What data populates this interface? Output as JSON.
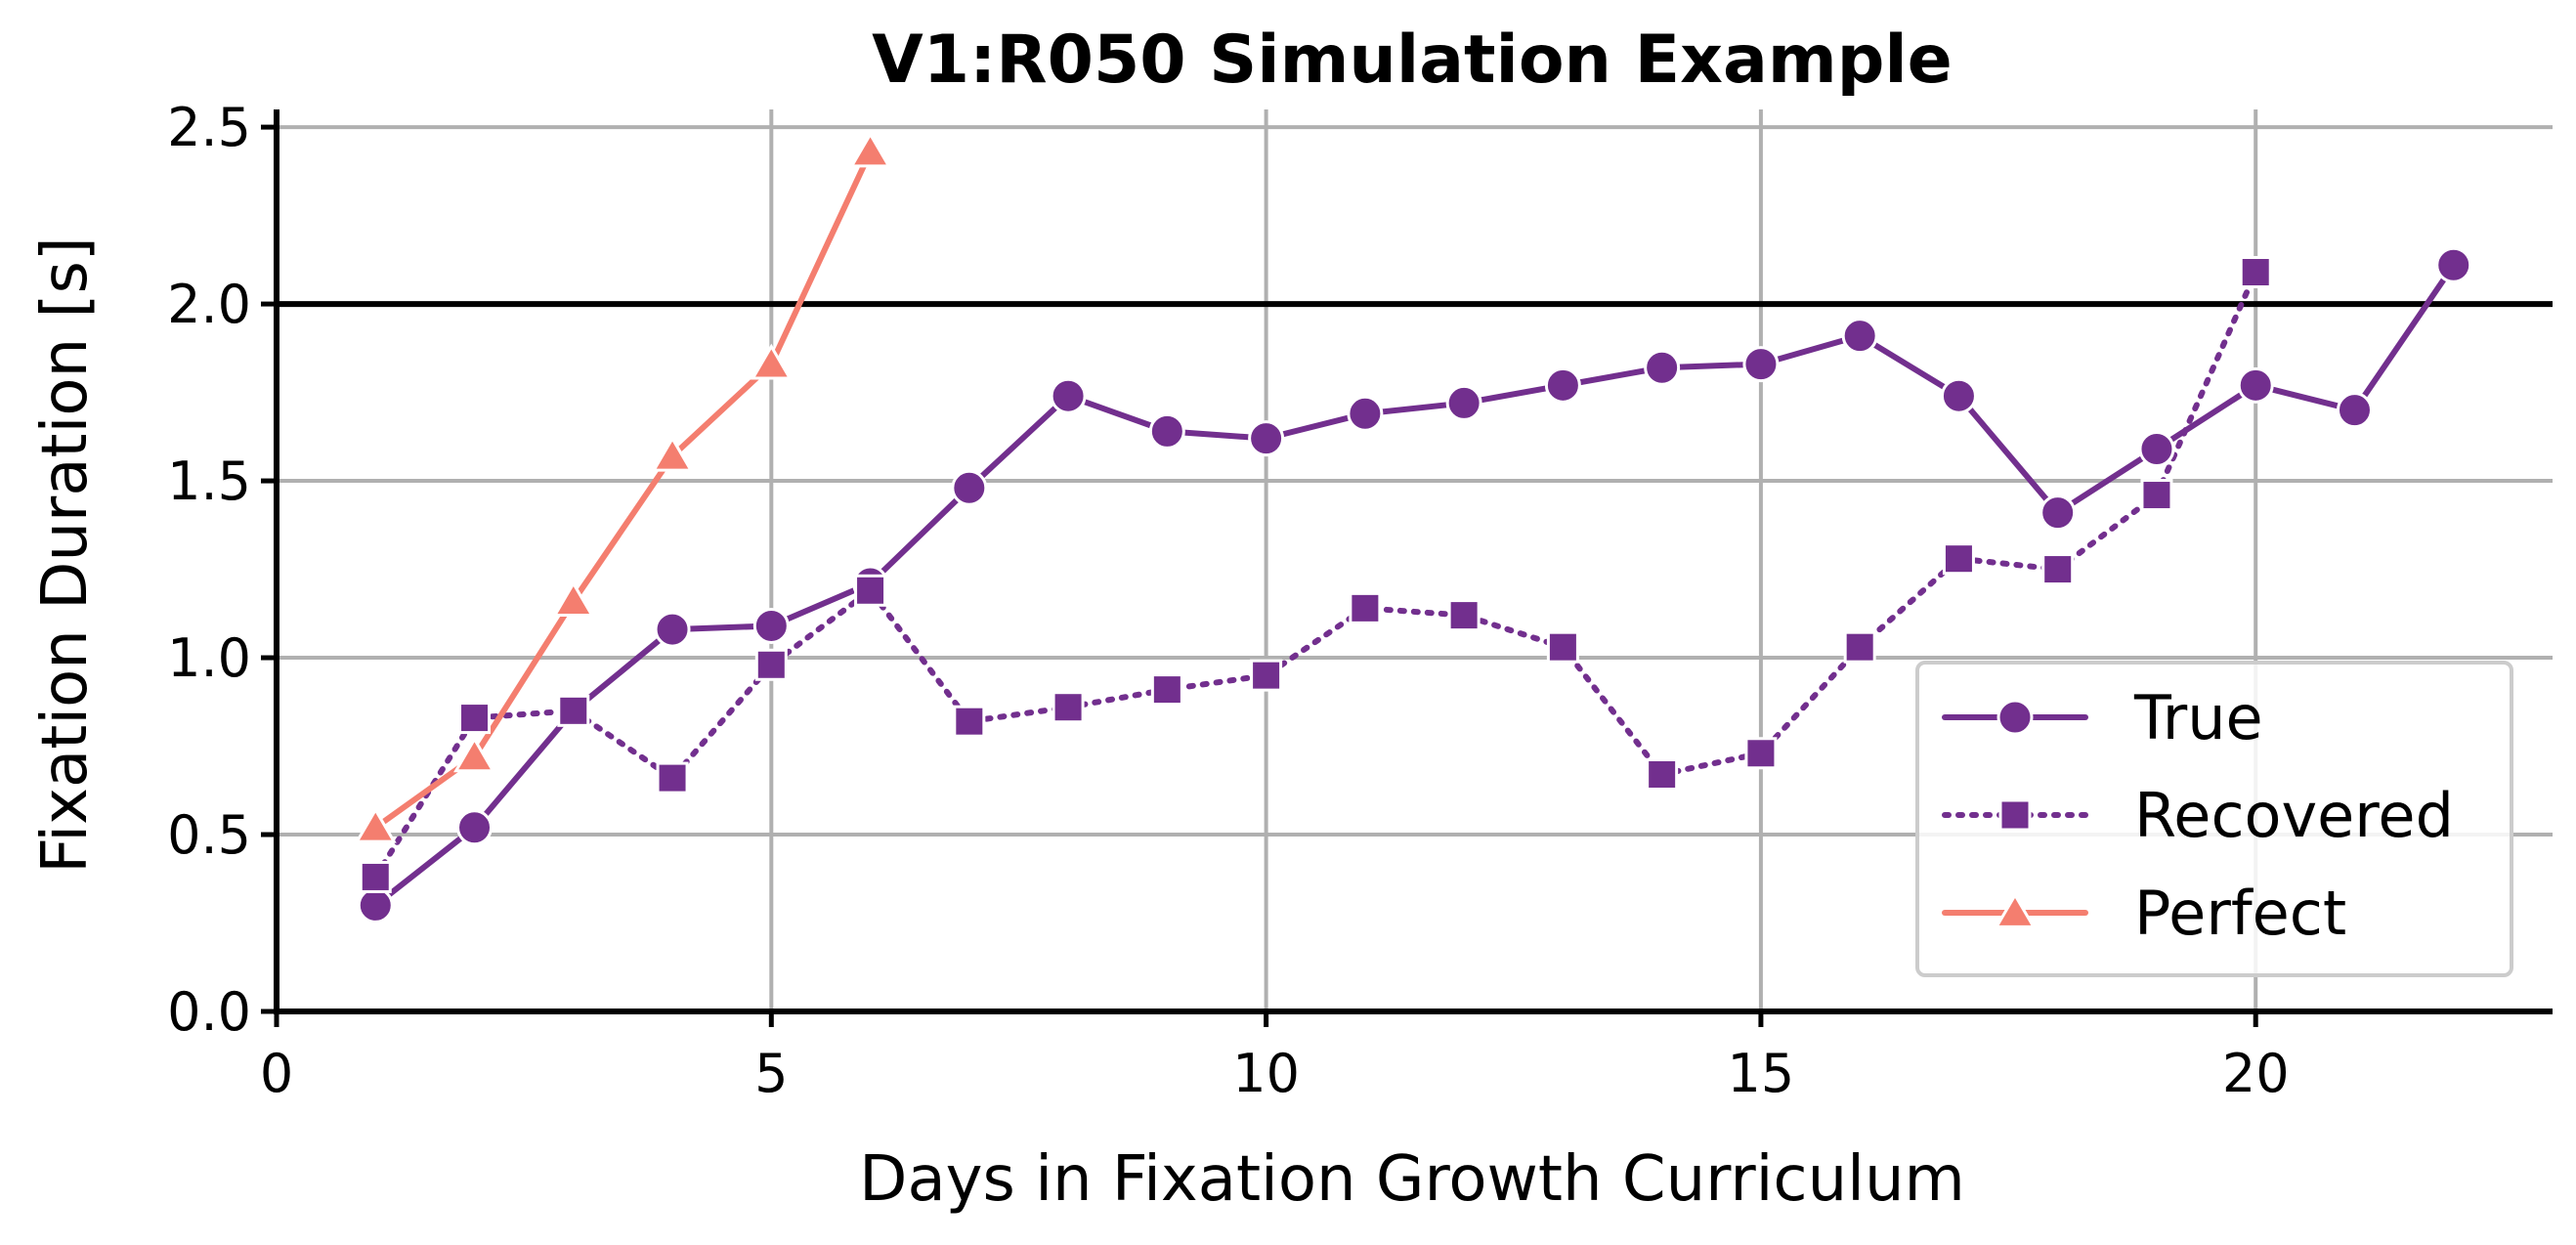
{
  "chart_data": {
    "type": "line",
    "title": "V1:R050 Simulation Example",
    "xlabel": "Days in Fixation Growth Curriculum",
    "ylabel": "Fixation Duration [s]",
    "xlim": [
      0,
      23
    ],
    "ylim": [
      0,
      2.55
    ],
    "xticks": [
      0,
      5,
      10,
      15,
      20
    ],
    "yticks": [
      0.0,
      0.5,
      1.0,
      1.5,
      2.0,
      2.5
    ],
    "xtick_labels": [
      "0",
      "5",
      "10",
      "15",
      "20"
    ],
    "ytick_labels": [
      "0.0",
      "0.5",
      "1.0",
      "1.5",
      "2.0",
      "2.5"
    ],
    "grid": true,
    "reference_line_y": 2.0,
    "legend_position": "lower-right",
    "series": [
      {
        "name": "True",
        "color": "#722f8e",
        "marker": "circle",
        "linestyle": "solid",
        "x": [
          1,
          2,
          3,
          4,
          5,
          6,
          7,
          8,
          9,
          10,
          11,
          12,
          13,
          14,
          15,
          16,
          17,
          18,
          19,
          20,
          21,
          22
        ],
        "y": [
          0.3,
          0.52,
          0.85,
          1.08,
          1.09,
          1.21,
          1.48,
          1.74,
          1.64,
          1.62,
          1.69,
          1.72,
          1.77,
          1.82,
          1.83,
          1.91,
          1.74,
          1.41,
          1.59,
          1.77,
          1.7,
          2.11
        ]
      },
      {
        "name": "Recovered",
        "color": "#722f8e",
        "marker": "square",
        "linestyle": "dotted",
        "x": [
          1,
          2,
          3,
          4,
          5,
          6,
          7,
          8,
          9,
          10,
          11,
          12,
          13,
          14,
          15,
          16,
          17,
          18,
          19,
          20
        ],
        "y": [
          0.38,
          0.83,
          0.85,
          0.66,
          0.98,
          1.19,
          0.82,
          0.86,
          0.91,
          0.95,
          1.14,
          1.12,
          1.03,
          0.67,
          0.73,
          1.03,
          1.28,
          1.25,
          1.46,
          2.09
        ]
      },
      {
        "name": "Perfect",
        "color": "#f47e6f",
        "marker": "triangle",
        "linestyle": "solid",
        "x": [
          1,
          2,
          3,
          4,
          5,
          6
        ],
        "y": [
          0.52,
          0.72,
          1.16,
          1.57,
          1.83,
          2.43
        ]
      }
    ]
  }
}
